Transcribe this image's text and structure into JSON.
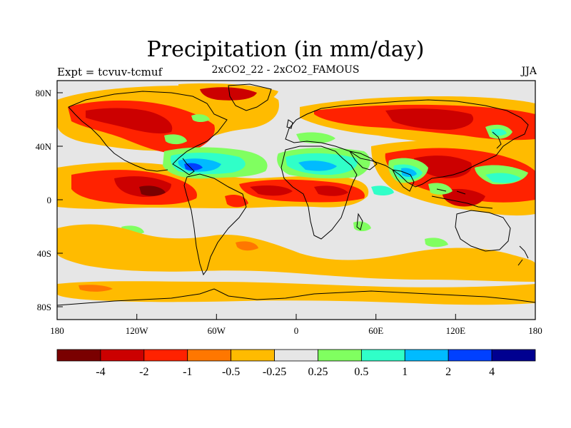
{
  "title": "Precipitation (in mm/day)",
  "left_label": "Expt = tcvuv-tcmuf",
  "center_label": "2xCO2_22 - 2xCO2_FAMOUS",
  "right_label": "JJA",
  "lat_ticks": [
    "80N",
    "40N",
    "0",
    "40S",
    "80S"
  ],
  "lon_ticks": [
    "180",
    "120W",
    "60W",
    "0",
    "60E",
    "120E",
    "180"
  ],
  "colorbar": {
    "colors": [
      "#7a0000",
      "#cc0000",
      "#ff2200",
      "#ff7700",
      "#ffbb00",
      "#e6e6e6",
      "#80ff60",
      "#30ffc8",
      "#00bbff",
      "#0040ff",
      "#000090"
    ],
    "labels": [
      "-4",
      "-2",
      "-1",
      "-0.5",
      "-0.25",
      "0.25",
      "0.5",
      "1",
      "2",
      "4"
    ]
  }
}
